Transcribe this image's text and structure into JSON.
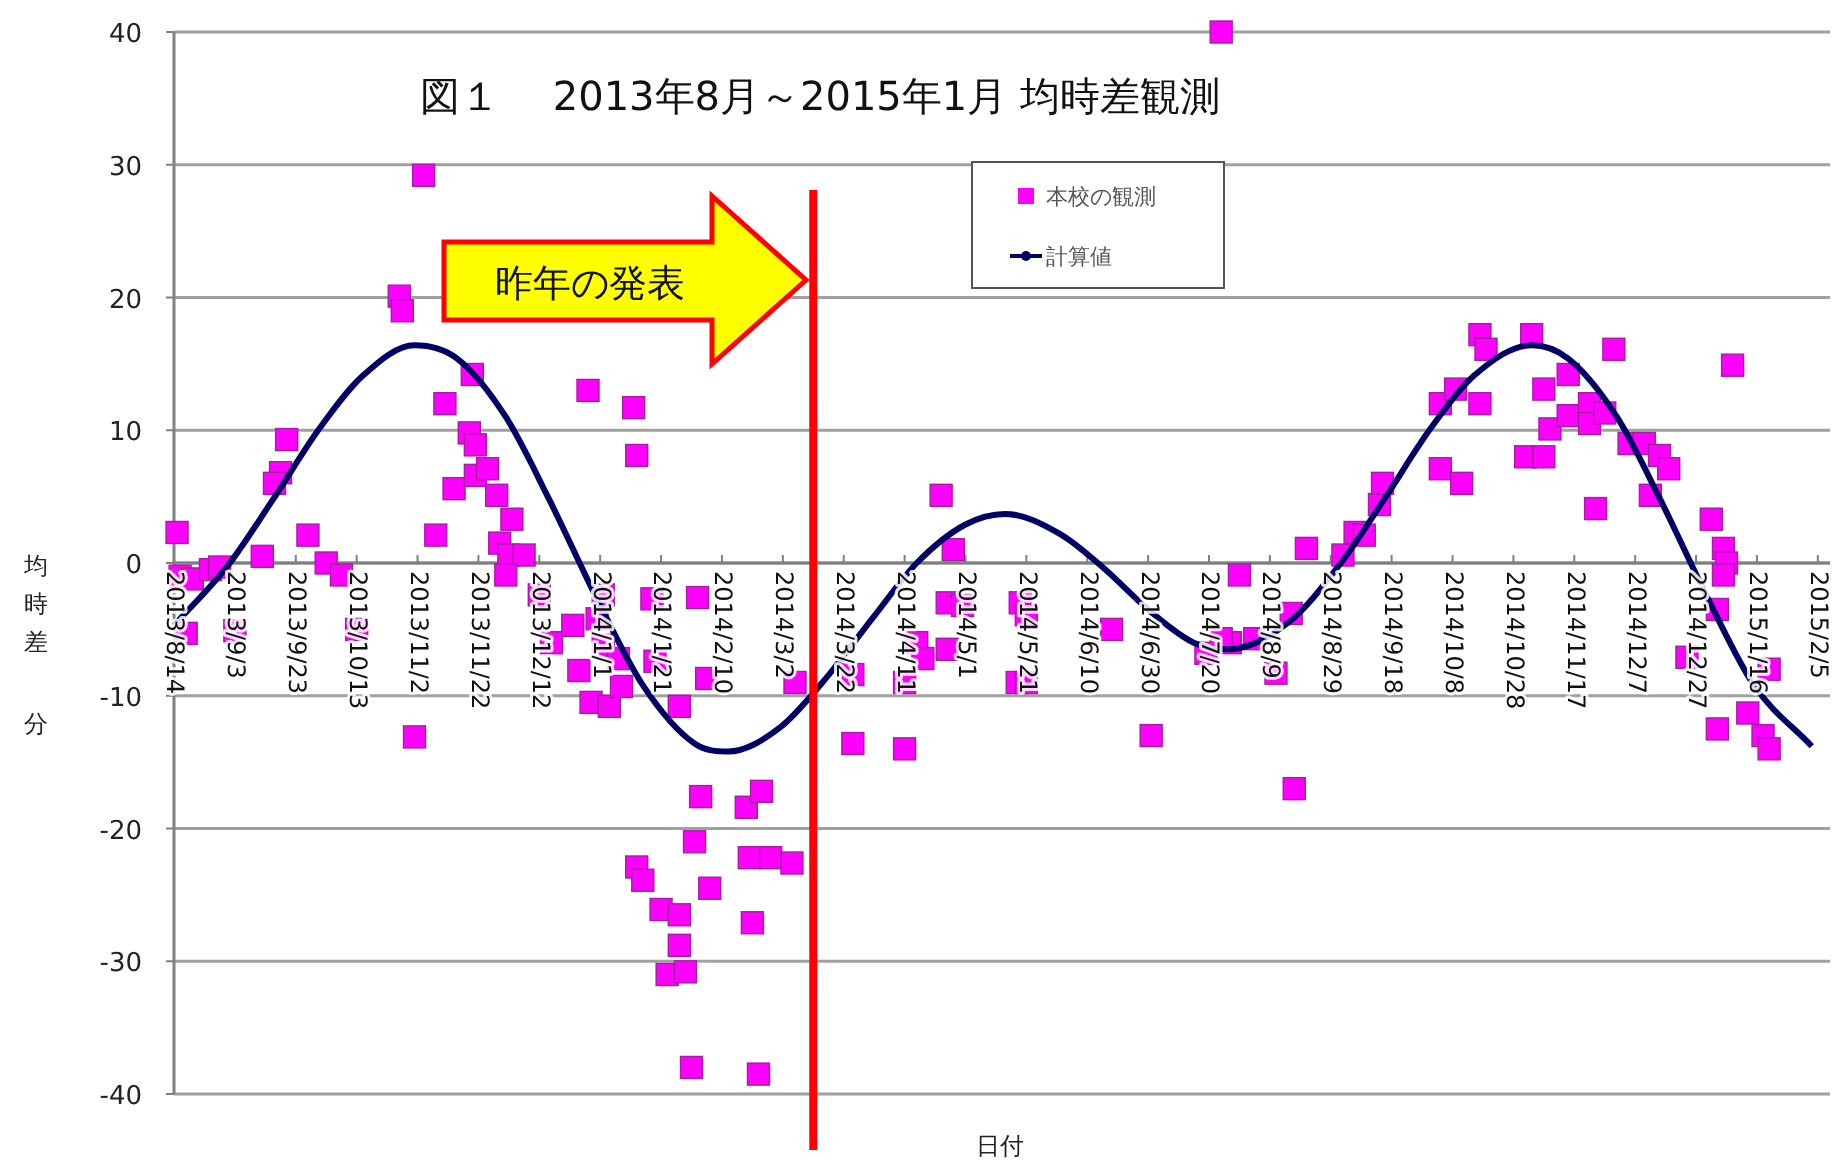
{
  "chart_data": {
    "type": "scatter",
    "title": "図１　 2013年8月～2015年1月 均時差観測",
    "xlabel": "日付",
    "ylabel": "均時差分",
    "annotations": [
      "昨年の発表"
    ],
    "xlim": [
      "2013-08-14",
      "2015-02-09"
    ],
    "ylim": [
      -40,
      40
    ],
    "yticks": [
      -40,
      -30,
      -20,
      -10,
      0,
      10,
      20,
      30,
      40
    ],
    "xticks": [
      {
        "value": "2013-08-14",
        "label": "2013/8/14"
      },
      {
        "value": "2013-09-03",
        "label": "2013/9/3"
      },
      {
        "value": "2013-09-23",
        "label": "2013/9/23"
      },
      {
        "value": "2013-10-13",
        "label": "2013/10/13"
      },
      {
        "value": "2013-11-02",
        "label": "2013/11/2"
      },
      {
        "value": "2013-11-22",
        "label": "2013/11/22"
      },
      {
        "value": "2013-12-12",
        "label": "2013/12/12"
      },
      {
        "value": "2014-01-01",
        "label": "2014/1/1"
      },
      {
        "value": "2014-01-21",
        "label": "2014/1/21"
      },
      {
        "value": "2014-02-10",
        "label": "2014/2/10"
      },
      {
        "value": "2014-03-02",
        "label": "2014/3/2"
      },
      {
        "value": "2014-03-22",
        "label": "2014/3/22"
      },
      {
        "value": "2014-04-11",
        "label": "2014/4/11"
      },
      {
        "value": "2014-05-01",
        "label": "2014/5/1"
      },
      {
        "value": "2014-05-21",
        "label": "2014/5/21"
      },
      {
        "value": "2014-06-10",
        "label": "2014/6/10"
      },
      {
        "value": "2014-06-30",
        "label": "2014/6/30"
      },
      {
        "value": "2014-07-20",
        "label": "2014/7/20"
      },
      {
        "value": "2014-08-09",
        "label": "2014/8/9"
      },
      {
        "value": "2014-08-29",
        "label": "2014/8/29"
      },
      {
        "value": "2014-09-18",
        "label": "2014/9/18"
      },
      {
        "value": "2014-10-08",
        "label": "2014/10/8"
      },
      {
        "value": "2014-10-28",
        "label": "2014/10/28"
      },
      {
        "value": "2014-11-17",
        "label": "2014/11/17"
      },
      {
        "value": "2014-12-07",
        "label": "2014/12/7"
      },
      {
        "value": "2014-12-27",
        "label": "2014/12/27"
      },
      {
        "value": "2015-01-16",
        "label": "2015/1/16"
      },
      {
        "value": "2015-02-05",
        "label": "2015/2/5"
      }
    ],
    "grid": "y",
    "legend": "top",
    "ref_lines": [
      {
        "axis": "x",
        "value": "2014-03-12",
        "color": "#ff0000"
      }
    ],
    "series": [
      {
        "name": "本校の観測",
        "type": "scatter",
        "marker": "square",
        "color": "#ff00ff",
        "x": [
          "2013-08-15",
          "2013-08-16",
          "2013-08-20",
          "2013-08-18",
          "2013-08-26",
          "2013-08-29",
          "2013-09-03",
          "2013-09-12",
          "2013-09-20",
          "2013-09-18",
          "2013-09-16",
          "2013-09-27",
          "2013-10-03",
          "2013-10-08",
          "2013-10-13",
          "2013-10-27",
          "2013-10-28",
          "2013-11-01",
          "2013-11-04",
          "2013-11-08",
          "2013-11-11",
          "2013-11-14",
          "2013-11-20",
          "2013-11-19",
          "2013-11-21",
          "2013-11-21",
          "2013-11-25",
          "2013-11-28",
          "2013-12-03",
          "2013-11-29",
          "2013-12-02",
          "2013-12-07",
          "2013-12-01",
          "2013-12-12",
          "2013-12-16",
          "2013-12-23",
          "2013-12-25",
          "2013-12-29",
          "2013-12-31",
          "2014-01-02",
          "2014-01-02",
          "2014-01-04",
          "2014-01-08",
          "2014-01-07",
          "2013-12-28",
          "2014-01-12",
          "2014-01-13",
          "2014-01-18",
          "2014-01-19",
          "2014-01-27",
          "2014-02-02",
          "2014-02-05",
          "2014-01-13",
          "2014-01-15",
          "2014-01-21",
          "2014-01-27",
          "2014-01-27",
          "2014-01-23",
          "2014-01-29",
          "2014-01-31",
          "2014-02-01",
          "2014-02-03",
          "2014-02-06",
          "2014-02-18",
          "2014-02-23",
          "2014-02-19",
          "2014-02-26",
          "2014-03-05",
          "2014-02-20",
          "2014-02-22",
          "2014-03-06",
          "2014-03-25",
          "2014-03-25",
          "2014-04-11",
          "2014-04-11",
          "2014-04-15",
          "2014-04-17",
          "2014-04-25",
          "2014-04-25",
          "2014-04-23",
          "2014-04-27",
          "2014-04-30",
          "2014-05-19",
          "2014-05-21",
          "2014-05-18",
          "2014-05-21",
          "2014-06-18",
          "2014-07-01",
          "2014-07-30",
          "2014-07-19",
          "2014-07-27",
          "2014-07-24",
          "2014-07-24",
          "2014-08-04",
          "2014-08-11",
          "2014-08-17",
          "2014-08-16",
          "2014-08-21",
          "2014-09-02",
          "2014-09-06",
          "2014-09-09",
          "2014-09-14",
          "2014-09-15",
          "2014-10-04",
          "2014-10-11",
          "2014-10-04",
          "2014-10-09",
          "2014-10-17",
          "2014-10-17",
          "2014-10-19",
          "2014-11-03",
          "2014-11-01",
          "2014-11-07",
          "2014-11-07",
          "2014-11-15",
          "2014-11-09",
          "2014-11-15",
          "2014-11-22",
          "2014-11-22",
          "2014-11-24",
          "2014-11-27",
          "2014-11-30",
          "2014-12-05",
          "2014-12-10",
          "2014-12-12",
          "2014-12-15",
          "2014-12-18",
          "2015-01-01",
          "2015-01-05",
          "2015-01-06",
          "2015-01-05",
          "2015-01-08",
          "2014-12-24",
          "2015-01-03",
          "2015-01-03",
          "2015-01-20",
          "2015-01-13",
          "2015-01-18",
          "2015-01-20"
        ],
        "values": [
          2.3,
          -1.0,
          -1.2,
          -5.3,
          -0.5,
          -0.3,
          -5.1,
          0.5,
          9.3,
          6.8,
          6.0,
          2.1,
          0,
          -0.9,
          -5.0,
          20.1,
          19.0,
          -13.1,
          29.2,
          2.1,
          12,
          5.6,
          14.2,
          9.8,
          8.9,
          6.6,
          7.1,
          5.1,
          3.3,
          1.5,
          0.6,
          0.6,
          -0.9,
          -2.4,
          -6,
          -4.7,
          -8.1,
          -10.5,
          -4.2,
          -2.4,
          -6.2,
          -10.8,
          -9.3,
          -7.2,
          13,
          11.7,
          8.1,
          -2.7,
          -7.4,
          -10.8,
          -2.6,
          -8.7,
          -22.9,
          -23.9,
          -26.1,
          -26.5,
          -28.8,
          -31,
          -30.8,
          -38,
          -21,
          -17.6,
          -24.5,
          -18.4,
          -17.2,
          -22.2,
          -22.2,
          -22.6,
          -27.1,
          -38.5,
          -9,
          -8.4,
          -13.6,
          -9,
          -14,
          -6,
          -7.2,
          -6.5,
          -3,
          5.1,
          1,
          -3.2,
          -3,
          -3.9,
          -9,
          -9,
          -5,
          -13,
          -0.9,
          -6.8,
          -6,
          -5.7,
          40,
          -5.7,
          -8.3,
          -17,
          -3.8,
          1.1,
          0.6,
          2.3,
          2.1,
          4.4,
          6.0,
          7.1,
          6.0,
          12,
          13.1,
          12,
          17.2,
          16.1,
          17.2,
          8,
          8,
          13.1,
          14.2,
          10.1,
          11.1,
          12,
          10.5,
          4.1,
          11.3,
          16.1,
          9,
          9,
          5.1,
          8.1,
          7.1,
          3.3,
          1.1,
          0,
          -0.9,
          14.9,
          -7.1,
          -3.5,
          -12.5,
          -8,
          -11.3,
          -13,
          -14
        ]
      },
      {
        "name": "計算値",
        "type": "line",
        "color": "#000066",
        "x": [
          "2013-08-14",
          "2013-09-01",
          "2013-09-15",
          "2013-10-01",
          "2013-10-15",
          "2013-11-01",
          "2013-11-15",
          "2013-12-01",
          "2013-12-15",
          "2014-01-01",
          "2014-01-15",
          "2014-02-01",
          "2014-02-12",
          "2014-03-01",
          "2014-03-15",
          "2014-04-01",
          "2014-04-15",
          "2014-05-01",
          "2014-05-14",
          "2014-06-01",
          "2014-06-15",
          "2014-07-01",
          "2014-07-15",
          "2014-07-26",
          "2014-08-15",
          "2014-09-01",
          "2014-09-15",
          "2014-10-01",
          "2014-10-15",
          "2014-11-03",
          "2014-11-15",
          "2014-12-01",
          "2014-12-15",
          "2015-01-01",
          "2015-01-15",
          "2015-02-03"
        ],
        "values": [
          -4.7,
          -0.1,
          4.6,
          10.2,
          14.1,
          16.4,
          15.4,
          11.0,
          4.9,
          -3.2,
          -9.2,
          -13.6,
          -14.2,
          -12.4,
          -9.0,
          -4.0,
          0.0,
          2.9,
          3.7,
          2.2,
          -0.3,
          -3.7,
          -6.0,
          -6.5,
          -4.5,
          -0.1,
          4.6,
          10.2,
          14.1,
          16.4,
          15.4,
          11.0,
          4.9,
          -3.2,
          -9.2,
          -13.8
        ]
      }
    ]
  }
}
